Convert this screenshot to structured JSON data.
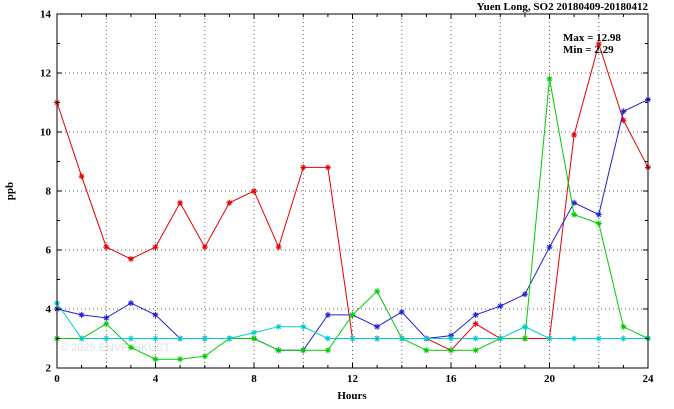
{
  "watermark": "© 2025 ENVF, HKUST",
  "chart_data": {
    "type": "line",
    "title": "Yuen Long, SO2 20180409-20180412",
    "xlabel": "Hours",
    "ylabel": "ppb",
    "xlim": [
      0,
      24
    ],
    "ylim": [
      2,
      14
    ],
    "xticks": [
      0,
      4,
      8,
      12,
      16,
      20,
      24
    ],
    "yticks": [
      2,
      4,
      6,
      8,
      10,
      12,
      14
    ],
    "grid": "dotted",
    "legend": "none",
    "annotations": {
      "max": "Max = 12.98",
      "min": "Min = 2.29"
    },
    "x": [
      0,
      1,
      2,
      3,
      4,
      5,
      6,
      7,
      8,
      9,
      10,
      11,
      12,
      13,
      14,
      15,
      16,
      17,
      18,
      19,
      20,
      21,
      22,
      23,
      24
    ],
    "series": [
      {
        "name": "red",
        "color": "#e60000",
        "values": [
          11.0,
          8.5,
          6.1,
          5.7,
          6.1,
          7.6,
          6.1,
          7.6,
          8.0,
          6.1,
          8.8,
          8.8,
          3.0,
          3.0,
          3.0,
          3.0,
          2.6,
          3.5,
          3.0,
          3.0,
          3.0,
          9.9,
          12.98,
          10.4,
          8.8
        ]
      },
      {
        "name": "blue",
        "color": "#2020d8",
        "values": [
          4.0,
          3.8,
          3.7,
          4.2,
          3.8,
          3.0,
          3.0,
          3.0,
          3.0,
          2.6,
          2.6,
          3.8,
          3.8,
          3.4,
          3.9,
          3.0,
          3.1,
          3.8,
          4.1,
          4.5,
          6.1,
          7.6,
          7.2,
          10.7,
          11.1
        ]
      },
      {
        "name": "green",
        "color": "#00cc00",
        "values": [
          3.0,
          3.0,
          3.5,
          2.7,
          2.3,
          2.3,
          2.4,
          3.0,
          3.0,
          2.6,
          2.6,
          2.6,
          3.8,
          4.6,
          3.0,
          2.6,
          2.6,
          2.6,
          3.0,
          3.0,
          11.8,
          7.2,
          6.9,
          3.4,
          3.0
        ]
      },
      {
        "name": "cyan",
        "color": "#00cccc",
        "values": [
          4.2,
          3.0,
          3.0,
          3.0,
          3.0,
          3.0,
          3.0,
          3.0,
          3.2,
          3.4,
          3.4,
          3.0,
          3.0,
          3.0,
          3.0,
          3.0,
          3.0,
          3.0,
          3.0,
          3.4,
          3.0,
          3.0,
          3.0,
          3.0,
          3.0
        ]
      }
    ]
  }
}
